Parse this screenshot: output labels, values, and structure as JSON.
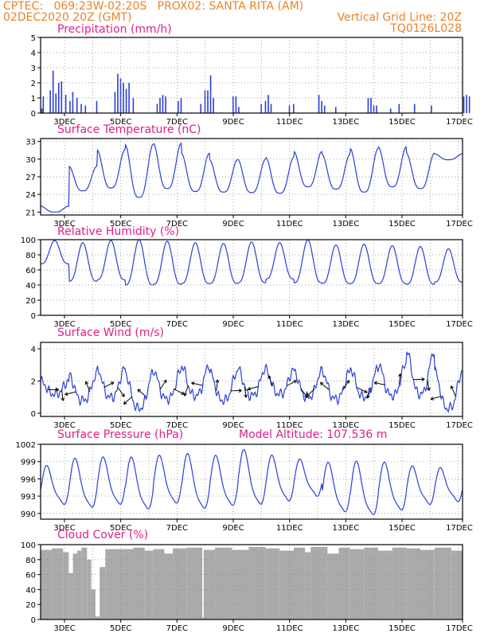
{
  "header": {
    "line1": "CPTEC:   069:23W-02:20S   PROX02: SANTA RITA (AM)",
    "line2_left": "02DEC2020 20Z (GMT)",
    "line2_right": "Vertical Grid Line: 20Z",
    "line3_right": "TQ0126L028"
  },
  "x_axis": {
    "start": "02DEC2020 20Z",
    "end": "17DEC2020 00Z",
    "tick_labels": [
      "3DEC",
      "5DEC",
      "7DEC",
      "9DEC",
      "11DEC",
      "13DEC",
      "15DEC",
      "17DEC"
    ]
  },
  "colors": {
    "line": "#2a3fd8",
    "cloud": "#aaaaaa",
    "header": "#e8842a",
    "title": "#e0208a",
    "grid": "#888888"
  },
  "chart_data": [
    {
      "type": "bar",
      "title": "Precipitation (mm/h)",
      "ylim": [
        0,
        5
      ],
      "yticks": [
        0,
        1,
        2,
        3,
        4,
        5
      ],
      "grid": true,
      "bars_day_value": [
        [
          0.05,
          0.3
        ],
        [
          0.1,
          1.1
        ],
        [
          0.35,
          1.5
        ],
        [
          0.45,
          2.8
        ],
        [
          0.55,
          1.3
        ],
        [
          0.65,
          2.0
        ],
        [
          0.75,
          2.1
        ],
        [
          0.9,
          1.2
        ],
        [
          1.05,
          0.8
        ],
        [
          1.15,
          1.4
        ],
        [
          1.3,
          1.0
        ],
        [
          1.45,
          0.6
        ],
        [
          1.6,
          0.5
        ],
        [
          2.0,
          0.8
        ],
        [
          2.65,
          1.4
        ],
        [
          2.75,
          2.6
        ],
        [
          2.85,
          2.3
        ],
        [
          2.95,
          2.0
        ],
        [
          3.05,
          1.6
        ],
        [
          3.15,
          2.0
        ],
        [
          3.3,
          1.0
        ],
        [
          4.15,
          0.6
        ],
        [
          4.25,
          1.0
        ],
        [
          4.35,
          1.2
        ],
        [
          4.45,
          1.1
        ],
        [
          4.9,
          0.8
        ],
        [
          5.0,
          1.0
        ],
        [
          5.7,
          0.6
        ],
        [
          5.85,
          1.5
        ],
        [
          5.95,
          1.5
        ],
        [
          6.05,
          2.5
        ],
        [
          6.15,
          1.0
        ],
        [
          6.85,
          1.1
        ],
        [
          6.95,
          1.1
        ],
        [
          7.05,
          0.4
        ],
        [
          7.85,
          0.6
        ],
        [
          8.0,
          0.8
        ],
        [
          8.1,
          1.2
        ],
        [
          8.2,
          0.6
        ],
        [
          8.85,
          0.5
        ],
        [
          9.0,
          0.6
        ],
        [
          9.9,
          1.2
        ],
        [
          10.0,
          0.8
        ],
        [
          10.1,
          0.5
        ],
        [
          10.5,
          0.4
        ],
        [
          11.65,
          1.0
        ],
        [
          11.75,
          1.0
        ],
        [
          11.85,
          0.5
        ],
        [
          11.95,
          0.5
        ],
        [
          12.45,
          0.3
        ],
        [
          12.75,
          0.6
        ],
        [
          13.3,
          0.6
        ],
        [
          13.9,
          0.5
        ],
        [
          15.05,
          1.1
        ],
        [
          15.15,
          1.2
        ],
        [
          15.25,
          1.1
        ]
      ]
    },
    {
      "type": "line",
      "title": "Surface Temperature (nC)",
      "ylim": [
        20.5,
        33.5
      ],
      "yticks": [
        21,
        24,
        27,
        30,
        33
      ],
      "grid": true,
      "daily_max": [
        22.0,
        28.8,
        31.6,
        32.5,
        32.7,
        31.0,
        29.9,
        30.0,
        30.3,
        31.3,
        30.8,
        31.8,
        32.1,
        31.0,
        30.9
      ],
      "daily_min": [
        21.0,
        24.6,
        25.1,
        23.5,
        25.0,
        24.5,
        24.4,
        24.3,
        24.2,
        25.3,
        24.9,
        24.4,
        25.3,
        25.0,
        29.9
      ]
    },
    {
      "type": "line",
      "title": "Relative Humidity (%)",
      "ylim": [
        0,
        100
      ],
      "yticks": [
        0,
        20,
        40,
        60,
        80,
        100
      ],
      "grid": true,
      "daily_max": [
        99,
        96,
        99,
        100,
        98,
        96,
        95,
        97,
        96,
        100,
        93,
        94,
        92,
        91,
        88
      ],
      "daily_min": [
        68,
        45,
        47,
        40,
        41,
        42,
        42,
        43,
        48,
        43,
        42,
        42,
        42,
        41,
        44
      ]
    },
    {
      "type": "line",
      "title": "Surface Wind (m/s)",
      "ylim": [
        -0.2,
        4.4
      ],
      "yticks": [
        0,
        2,
        4
      ],
      "grid": true,
      "daily_max": [
        2.0,
        2.4,
        2.8,
        2.5,
        2.7,
        3.0,
        2.6,
        2.8,
        2.7,
        2.6,
        2.6,
        2.8,
        3.1,
        3.9,
        2.6
      ],
      "daily_min": [
        1.2,
        0.8,
        1.0,
        0.3,
        0.9,
        1.1,
        0.8,
        1.1,
        1.2,
        1.0,
        0.9,
        1.0,
        1.1,
        1.2,
        0.3
      ]
    },
    {
      "type": "line",
      "title": "Surface Pressure (hPa)",
      "annotation": "Model Altitude: 107.536 m",
      "ylim": [
        989,
        1002
      ],
      "yticks": [
        990,
        993,
        996,
        999,
        1002
      ],
      "ytick_labels": [
        "990",
        "993",
        "996",
        "999",
        "1002"
      ],
      "grid": true,
      "daily_max": [
        998.2,
        999.5,
        999.7,
        999.7,
        1000.0,
        1000.3,
        1000.0,
        1001.0,
        1000.0,
        999.3,
        998.8,
        999.0,
        998.8,
        998.1,
        997.8
      ],
      "daily_min": [
        992.0,
        991.5,
        992.0,
        991.2,
        992.2,
        991.3,
        991.8,
        992.0,
        992.6,
        993.4,
        990.7,
        990.2,
        991.0,
        992.0,
        992.5
      ]
    },
    {
      "type": "area",
      "title": "Cloud Cover (%)",
      "ylim": [
        0,
        100
      ],
      "yticks": [
        0,
        20,
        40,
        60,
        80,
        100
      ],
      "grid": true,
      "segments_day_value": [
        [
          0.0,
          93
        ],
        [
          0.4,
          95
        ],
        [
          0.8,
          90
        ],
        [
          1.0,
          62
        ],
        [
          1.15,
          88
        ],
        [
          1.3,
          92
        ],
        [
          1.45,
          96
        ],
        [
          1.65,
          80
        ],
        [
          1.8,
          40
        ],
        [
          1.95,
          4
        ],
        [
          2.1,
          70
        ],
        [
          2.3,
          94
        ],
        [
          3.3,
          96
        ],
        [
          3.7,
          92
        ],
        [
          4.0,
          94
        ],
        [
          4.4,
          88
        ],
        [
          4.7,
          95
        ],
        [
          5.2,
          96
        ],
        [
          5.75,
          3
        ],
        [
          5.8,
          93
        ],
        [
          6.2,
          96
        ],
        [
          6.8,
          93
        ],
        [
          7.4,
          97
        ],
        [
          8.0,
          95
        ],
        [
          8.5,
          92
        ],
        [
          9.0,
          96
        ],
        [
          9.4,
          90
        ],
        [
          9.6,
          97
        ],
        [
          10.2,
          88
        ],
        [
          10.6,
          96
        ],
        [
          11.0,
          94
        ],
        [
          11.5,
          96
        ],
        [
          12.0,
          92
        ],
        [
          12.5,
          96
        ],
        [
          13.0,
          95
        ],
        [
          13.5,
          93
        ],
        [
          14.0,
          96
        ],
        [
          14.6,
          92
        ],
        [
          15.0,
          96
        ]
      ]
    }
  ]
}
